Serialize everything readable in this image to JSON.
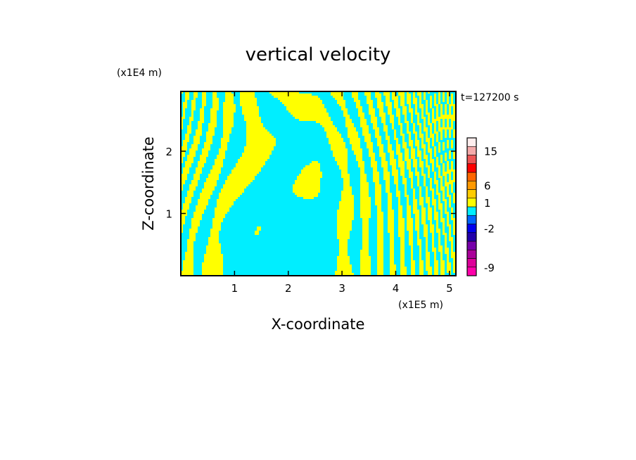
{
  "chart_data": {
    "type": "heatmap",
    "title": "vertical velocity",
    "xlabel": "X-coordinate",
    "ylabel": "Z-coordinate",
    "x_unit": "(x1E5 m)",
    "y_unit": "(x1E4 m)",
    "time_label": "t=127200 s",
    "xlim": [
      0,
      5.12
    ],
    "ylim": [
      0,
      2.96
    ],
    "x_ticks": [
      "1",
      "2",
      "3",
      "4",
      "5"
    ],
    "x_tick_values": [
      1,
      2,
      3,
      4,
      5
    ],
    "y_ticks": [
      "1",
      "2"
    ],
    "y_tick_values": [
      1,
      2
    ],
    "field_colors": {
      "positive": "#ffff00",
      "negative": "#00eeff"
    },
    "colorbar": {
      "colors": [
        "#ff00aa",
        "#dd0099",
        "#aa0099",
        "#7700aa",
        "#2200aa",
        "#0000ee",
        "#0066ff",
        "#00eeff",
        "#ffff00",
        "#ffcc00",
        "#ff9900",
        "#ff6600",
        "#ff0000",
        "#ee5555",
        "#f5aaaa",
        "#ffeeee"
      ],
      "labels": [
        "-9",
        "-2",
        "1",
        "6",
        "15"
      ],
      "label_positions": [
        1,
        5.5,
        8.5,
        10.5,
        14.5
      ]
    }
  },
  "colors": {
    "axis": "#000000",
    "background": "#ffffff"
  }
}
